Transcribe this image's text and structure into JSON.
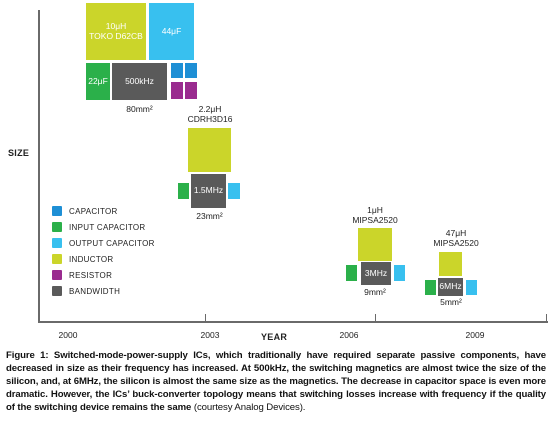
{
  "colors": {
    "capacitor": "#1e8fd5",
    "input_capacitor": "#2bb04a",
    "output_capacitor": "#38c0ef",
    "inductor": "#cbd52a",
    "resistor": "#9a2b8f",
    "bandwidth": "#5a5a5a"
  },
  "axes": {
    "y_title": "SIZE",
    "x_title": "YEAR"
  },
  "years": [
    "2000",
    "2003",
    "2006",
    "2009"
  ],
  "legend": [
    {
      "label": "CAPACITOR",
      "color_key": "capacitor"
    },
    {
      "label": "INPUT CAPACITOR",
      "color_key": "input_capacitor"
    },
    {
      "label": "OUTPUT CAPACITOR",
      "color_key": "output_capacitor"
    },
    {
      "label": "INDUCTOR",
      "color_key": "inductor"
    },
    {
      "label": "RESISTOR",
      "color_key": "resistor"
    },
    {
      "label": "BANDWIDTH",
      "color_key": "bandwidth"
    }
  ],
  "g2000": {
    "inductor_value": "10μH",
    "inductor_part": "TOKO D62CB",
    "out_cap": "44μF",
    "in_cap": "22μF",
    "freq": "500kHz",
    "area": "80mm²"
  },
  "g2003": {
    "inductor_value": "2.2μH",
    "inductor_part": "CDRH3D16",
    "freq": "1.5MHz",
    "area": "23mm²"
  },
  "g2006": {
    "inductor_value": "1μH",
    "inductor_part": "MIPSA2520",
    "freq": "3MHz",
    "area": "9mm²"
  },
  "g2009": {
    "inductor_value": "47μH",
    "inductor_part": "MIPSA2520",
    "freq": "6MHz",
    "area": "5mm²"
  },
  "caption": {
    "bold": "Figure 1: Switched-mode-power-supply ICs, which traditionally have required separate passive components, have decreased in size as their frequency has increased. At 500kHz, the switching magnetics are almost twice the size of the silicon, and, at 6MHz, the silicon is almost the same size as the magnetics. The decrease in capacitor space is even more dramatic. However, the ICs’ buck-converter topology means that switching losses increase with frequency if the quality of the switching device remains the same",
    "credit": " (courtesy Analog Devices)."
  }
}
